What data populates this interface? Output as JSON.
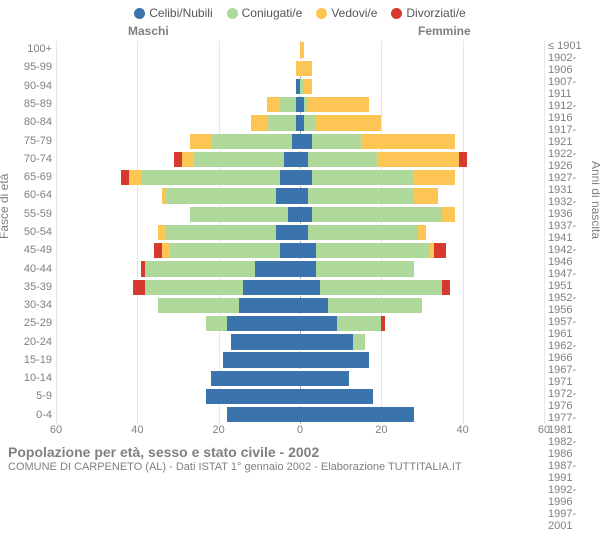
{
  "legend": [
    {
      "label": "Celibi/Nubili",
      "color": "#3b74ad"
    },
    {
      "label": "Coniugati/e",
      "color": "#aed99b"
    },
    {
      "label": "Vedovi/e",
      "color": "#fdc553"
    },
    {
      "label": "Divorziati/e",
      "color": "#d63a2e"
    }
  ],
  "gender_labels": {
    "m": "Maschi",
    "f": "Femmine"
  },
  "axis_titles": {
    "left": "Fasce di età",
    "right": "Anni di nascita"
  },
  "xlim": 60,
  "xtick_step": 20,
  "categories": [
    {
      "age": "100+",
      "birth": "≤ 1901",
      "m": [
        0,
        0,
        0,
        0
      ],
      "f": [
        0,
        0,
        1,
        0
      ]
    },
    {
      "age": "95-99",
      "birth": "1902-1906",
      "m": [
        0,
        0,
        1,
        0
      ],
      "f": [
        0,
        0,
        3,
        0
      ]
    },
    {
      "age": "90-94",
      "birth": "1907-1911",
      "m": [
        1,
        0,
        0,
        0
      ],
      "f": [
        0,
        1,
        2,
        0
      ]
    },
    {
      "age": "85-89",
      "birth": "1912-1916",
      "m": [
        1,
        4,
        3,
        0
      ],
      "f": [
        1,
        1,
        15,
        0
      ]
    },
    {
      "age": "80-84",
      "birth": "1917-1921",
      "m": [
        1,
        7,
        4,
        0
      ],
      "f": [
        1,
        3,
        16,
        0
      ]
    },
    {
      "age": "75-79",
      "birth": "1922-1926",
      "m": [
        2,
        20,
        5,
        0
      ],
      "f": [
        3,
        12,
        23,
        0
      ]
    },
    {
      "age": "70-74",
      "birth": "1927-1931",
      "m": [
        4,
        22,
        3,
        2
      ],
      "f": [
        2,
        17,
        20,
        2
      ]
    },
    {
      "age": "65-69",
      "birth": "1932-1936",
      "m": [
        5,
        34,
        3,
        2
      ],
      "f": [
        3,
        25,
        10,
        0
      ]
    },
    {
      "age": "60-64",
      "birth": "1937-1941",
      "m": [
        6,
        27,
        1,
        0
      ],
      "f": [
        2,
        26,
        6,
        0
      ]
    },
    {
      "age": "55-59",
      "birth": "1942-1946",
      "m": [
        3,
        24,
        0,
        0
      ],
      "f": [
        3,
        32,
        3,
        0
      ]
    },
    {
      "age": "50-54",
      "birth": "1947-1951",
      "m": [
        6,
        27,
        2,
        0
      ],
      "f": [
        2,
        27,
        2,
        0
      ]
    },
    {
      "age": "45-49",
      "birth": "1952-1956",
      "m": [
        5,
        27,
        2,
        2
      ],
      "f": [
        4,
        28,
        1,
        3
      ]
    },
    {
      "age": "40-44",
      "birth": "1957-1961",
      "m": [
        11,
        27,
        0,
        1
      ],
      "f": [
        4,
        24,
        0,
        0
      ]
    },
    {
      "age": "35-39",
      "birth": "1962-1966",
      "m": [
        14,
        24,
        0,
        3
      ],
      "f": [
        5,
        30,
        0,
        2
      ]
    },
    {
      "age": "30-34",
      "birth": "1967-1971",
      "m": [
        15,
        20,
        0,
        0
      ],
      "f": [
        7,
        23,
        0,
        0
      ]
    },
    {
      "age": "25-29",
      "birth": "1972-1976",
      "m": [
        18,
        5,
        0,
        0
      ],
      "f": [
        9,
        11,
        0,
        1
      ]
    },
    {
      "age": "20-24",
      "birth": "1977-1981",
      "m": [
        17,
        0,
        0,
        0
      ],
      "f": [
        13,
        3,
        0,
        0
      ]
    },
    {
      "age": "15-19",
      "birth": "1982-1986",
      "m": [
        19,
        0,
        0,
        0
      ],
      "f": [
        17,
        0,
        0,
        0
      ]
    },
    {
      "age": "10-14",
      "birth": "1987-1991",
      "m": [
        22,
        0,
        0,
        0
      ],
      "f": [
        12,
        0,
        0,
        0
      ]
    },
    {
      "age": "5-9",
      "birth": "1992-1996",
      "m": [
        23,
        0,
        0,
        0
      ],
      "f": [
        18,
        0,
        0,
        0
      ]
    },
    {
      "age": "0-4",
      "birth": "1997-2001",
      "m": [
        18,
        0,
        0,
        0
      ],
      "f": [
        28,
        0,
        0,
        0
      ]
    }
  ],
  "footer": {
    "title": "Popolazione per età, sesso e stato civile - 2002",
    "subtitle": "COMUNE DI CARPENETO (AL) - Dati ISTAT 1° gennaio 2002 - Elaborazione TUTTITALIA.IT"
  },
  "styling": {
    "background_color": "#ffffff",
    "grid_color": "#e6e6e6",
    "zero_line_color": "#b0b0b0",
    "text_color": "#808080",
    "label_fontsize": 11,
    "title_fontsize": 14
  }
}
